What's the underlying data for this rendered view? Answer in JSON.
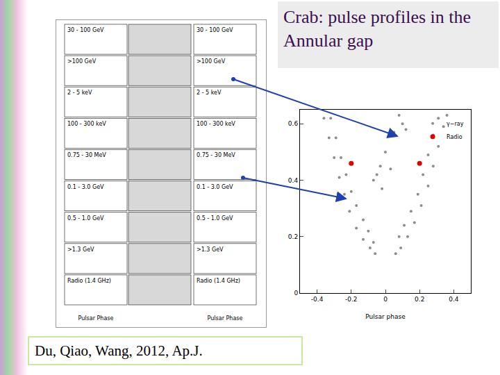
{
  "slide": {
    "title": "Crab: pulse profiles in the Annular gap",
    "citation": "Du, Qiao, Wang, 2012, Ap.J."
  },
  "profile_panels": {
    "labels": [
      "30 - 100 GeV",
      ">100 GeV",
      "2 - 5 keV",
      "100 - 300 keV",
      "0.75 - 30 MeV",
      "0.1 - 3.0 GeV",
      "0.5 - 1.0 GeV",
      ">1.3 GeV",
      "Radio (1.4 GHz)"
    ],
    "x_label": "Pulsar Phase"
  },
  "chart_data": {
    "type": "scatter",
    "x_label": "Pulsar phase",
    "xlim": [
      -0.5,
      0.5
    ],
    "ylim": [
      0,
      0.65
    ],
    "xticks": [
      -0.4,
      -0.2,
      0,
      0.2,
      0.4
    ],
    "yticks": [
      0,
      0.2,
      0.4,
      0.6
    ],
    "legend": "upper right",
    "series": [
      {
        "name": "γ−ray",
        "color": "#8c8c8c",
        "marker": "dot",
        "x": [
          -0.36,
          -0.33,
          -0.3,
          -0.27,
          -0.24,
          -0.21,
          -0.17,
          -0.13,
          -0.09,
          -0.06,
          -0.32,
          -0.29,
          -0.26,
          -0.23,
          -0.2,
          -0.17,
          -0.13,
          -0.1,
          -0.07,
          0.06,
          0.09,
          0.13,
          0.17,
          0.21,
          0.25,
          0.28,
          0.31,
          0.34,
          0.36,
          0.08,
          0.11,
          0.15,
          0.19,
          0.22,
          0.25,
          0.28,
          0.31,
          0.08,
          0.1,
          0.12,
          0.05,
          0.0,
          -0.03,
          -0.05,
          -0.07,
          0.03,
          -0.02
        ],
        "y": [
          0.62,
          0.55,
          0.48,
          0.41,
          0.35,
          0.29,
          0.23,
          0.19,
          0.16,
          0.14,
          0.62,
          0.55,
          0.48,
          0.42,
          0.36,
          0.31,
          0.26,
          0.22,
          0.18,
          0.14,
          0.16,
          0.2,
          0.25,
          0.31,
          0.38,
          0.45,
          0.52,
          0.59,
          0.63,
          0.2,
          0.24,
          0.29,
          0.35,
          0.42,
          0.49,
          0.56,
          0.62,
          0.63,
          0.6,
          0.58,
          0.57,
          0.5,
          0.45,
          0.42,
          0.4,
          0.44,
          0.37
        ]
      },
      {
        "name": "Radio",
        "color": "#e00000",
        "marker": "circle",
        "x": [
          -0.2,
          0.2
        ],
        "y": [
          0.46,
          0.46
        ]
      }
    ]
  }
}
